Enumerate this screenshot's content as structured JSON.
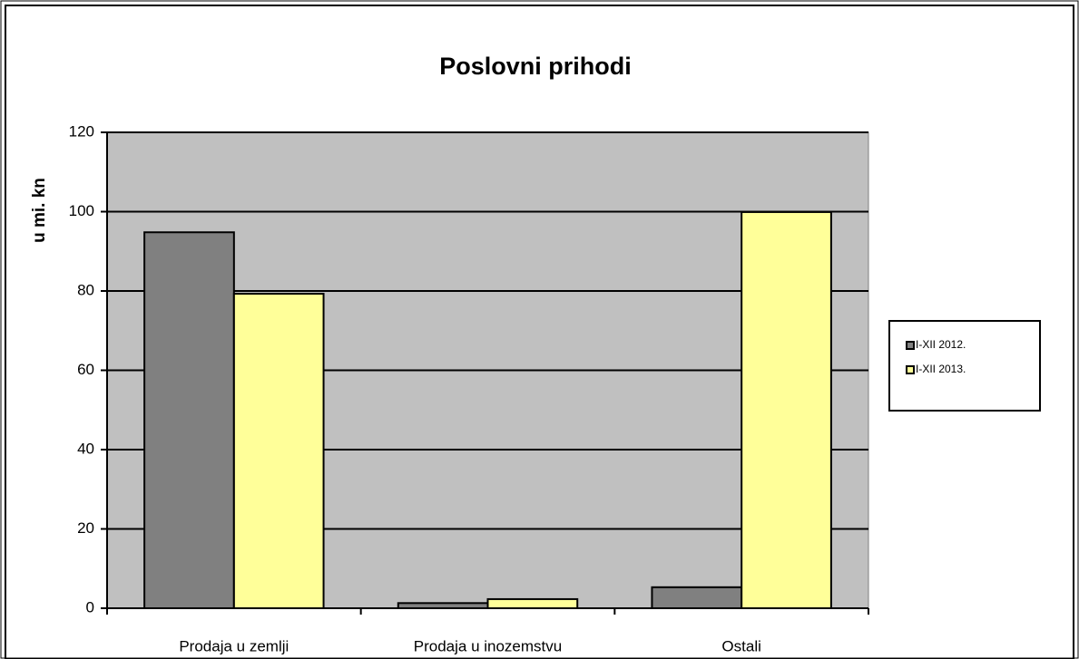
{
  "chart_data": {
    "type": "bar",
    "title": "Poslovni prihodi",
    "y_label": "u mi. kn",
    "categories": [
      "Prodaja u zemlji",
      "Prodaja u inozemstvu",
      "Ostali"
    ],
    "series": [
      {
        "name": "I-XII 2012.",
        "color": "#808080",
        "values": [
          94.8,
          1.3,
          5.3
        ]
      },
      {
        "name": "I-XII 2013.",
        "color": "#ffff99",
        "values": [
          79.3,
          2.3,
          99.9
        ]
      }
    ],
    "ylim": [
      0,
      120
    ],
    "yticks": [
      0,
      20,
      40,
      60,
      80,
      100,
      120
    ],
    "grid": true,
    "legend": "right",
    "plot_background": "#c0c0c0"
  }
}
